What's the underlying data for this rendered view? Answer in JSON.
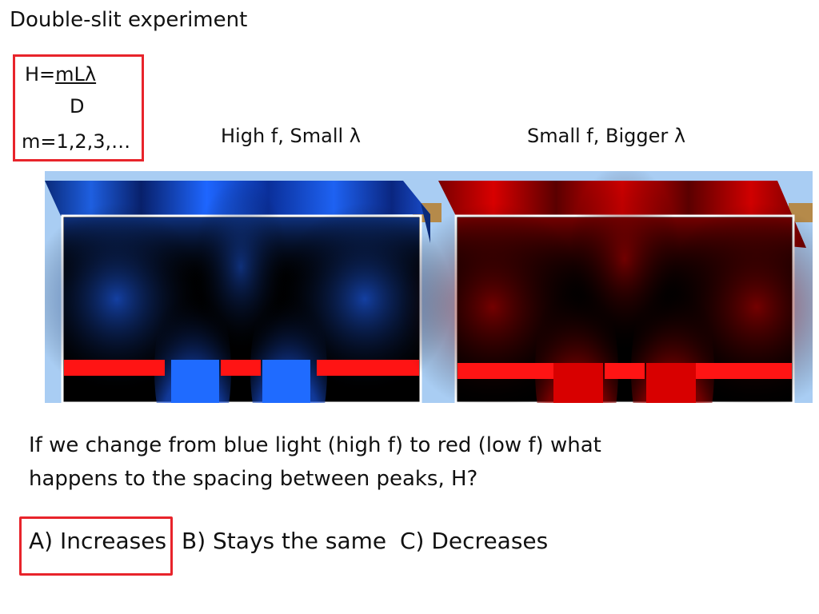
{
  "slide": {
    "title": "Double-slit experiment"
  },
  "formula": {
    "lhs": "H=",
    "numerator": "mLλ",
    "denominator": "D",
    "orders": "m=1,2,3,…"
  },
  "panels": {
    "blue_label": "High f, Small λ",
    "red_label": "Small f, Bigger λ",
    "blue_color": "#1e6cff",
    "red_color": "#e00000",
    "barrier_color": "#ff1414"
  },
  "question": {
    "text": "If we change from blue light (high f) to red (low f) what happens to the spacing between peaks, H?"
  },
  "answers": {
    "a": "A) Increases",
    "b": "B) Stays the same",
    "c": "C) Decreases",
    "selected": "a",
    "highlight_color": "#e8242b"
  }
}
